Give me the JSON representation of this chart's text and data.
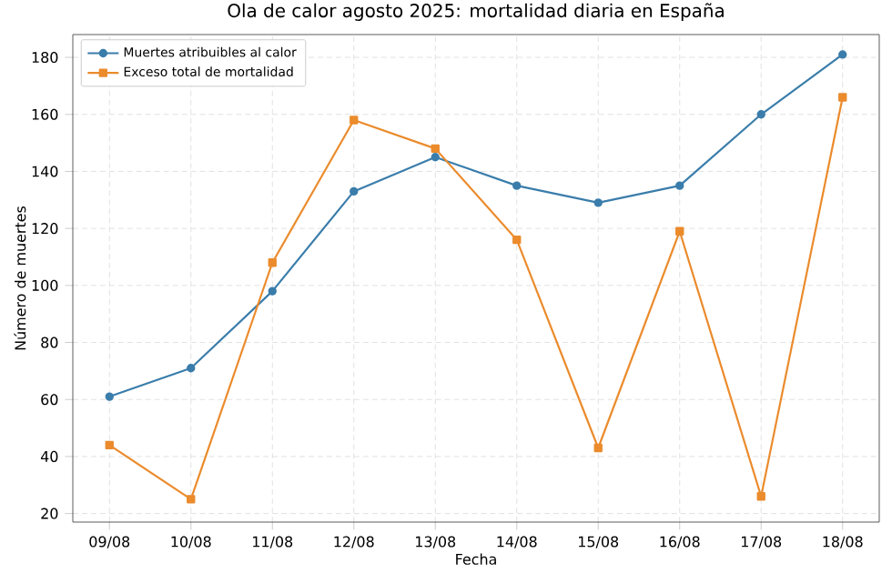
{
  "chart_data": {
    "type": "line",
    "title": "Ola de calor agosto 2025: mortalidad diaria en España",
    "xlabel": "Fecha",
    "ylabel": "Número de muertes",
    "categories": [
      "09/08",
      "10/08",
      "11/08",
      "12/08",
      "13/08",
      "14/08",
      "15/08",
      "16/08",
      "17/08",
      "18/08"
    ],
    "series": [
      {
        "name": "Muertes atribuibles al calor",
        "color": "#3a7dab",
        "marker": "circle",
        "values": [
          61,
          71,
          98,
          133,
          145,
          135,
          129,
          135,
          160,
          181
        ]
      },
      {
        "name": "Exceso total de mortalidad",
        "color": "#eb8b2c",
        "marker": "square",
        "values": [
          44,
          25,
          108,
          158,
          148,
          116,
          43,
          119,
          26,
          166
        ]
      }
    ],
    "ylim": [
      17,
      188
    ],
    "yticks": [
      20,
      40,
      60,
      80,
      100,
      120,
      140,
      160,
      180
    ],
    "grid": true,
    "legend": "top left",
    "line_style": "solid"
  }
}
